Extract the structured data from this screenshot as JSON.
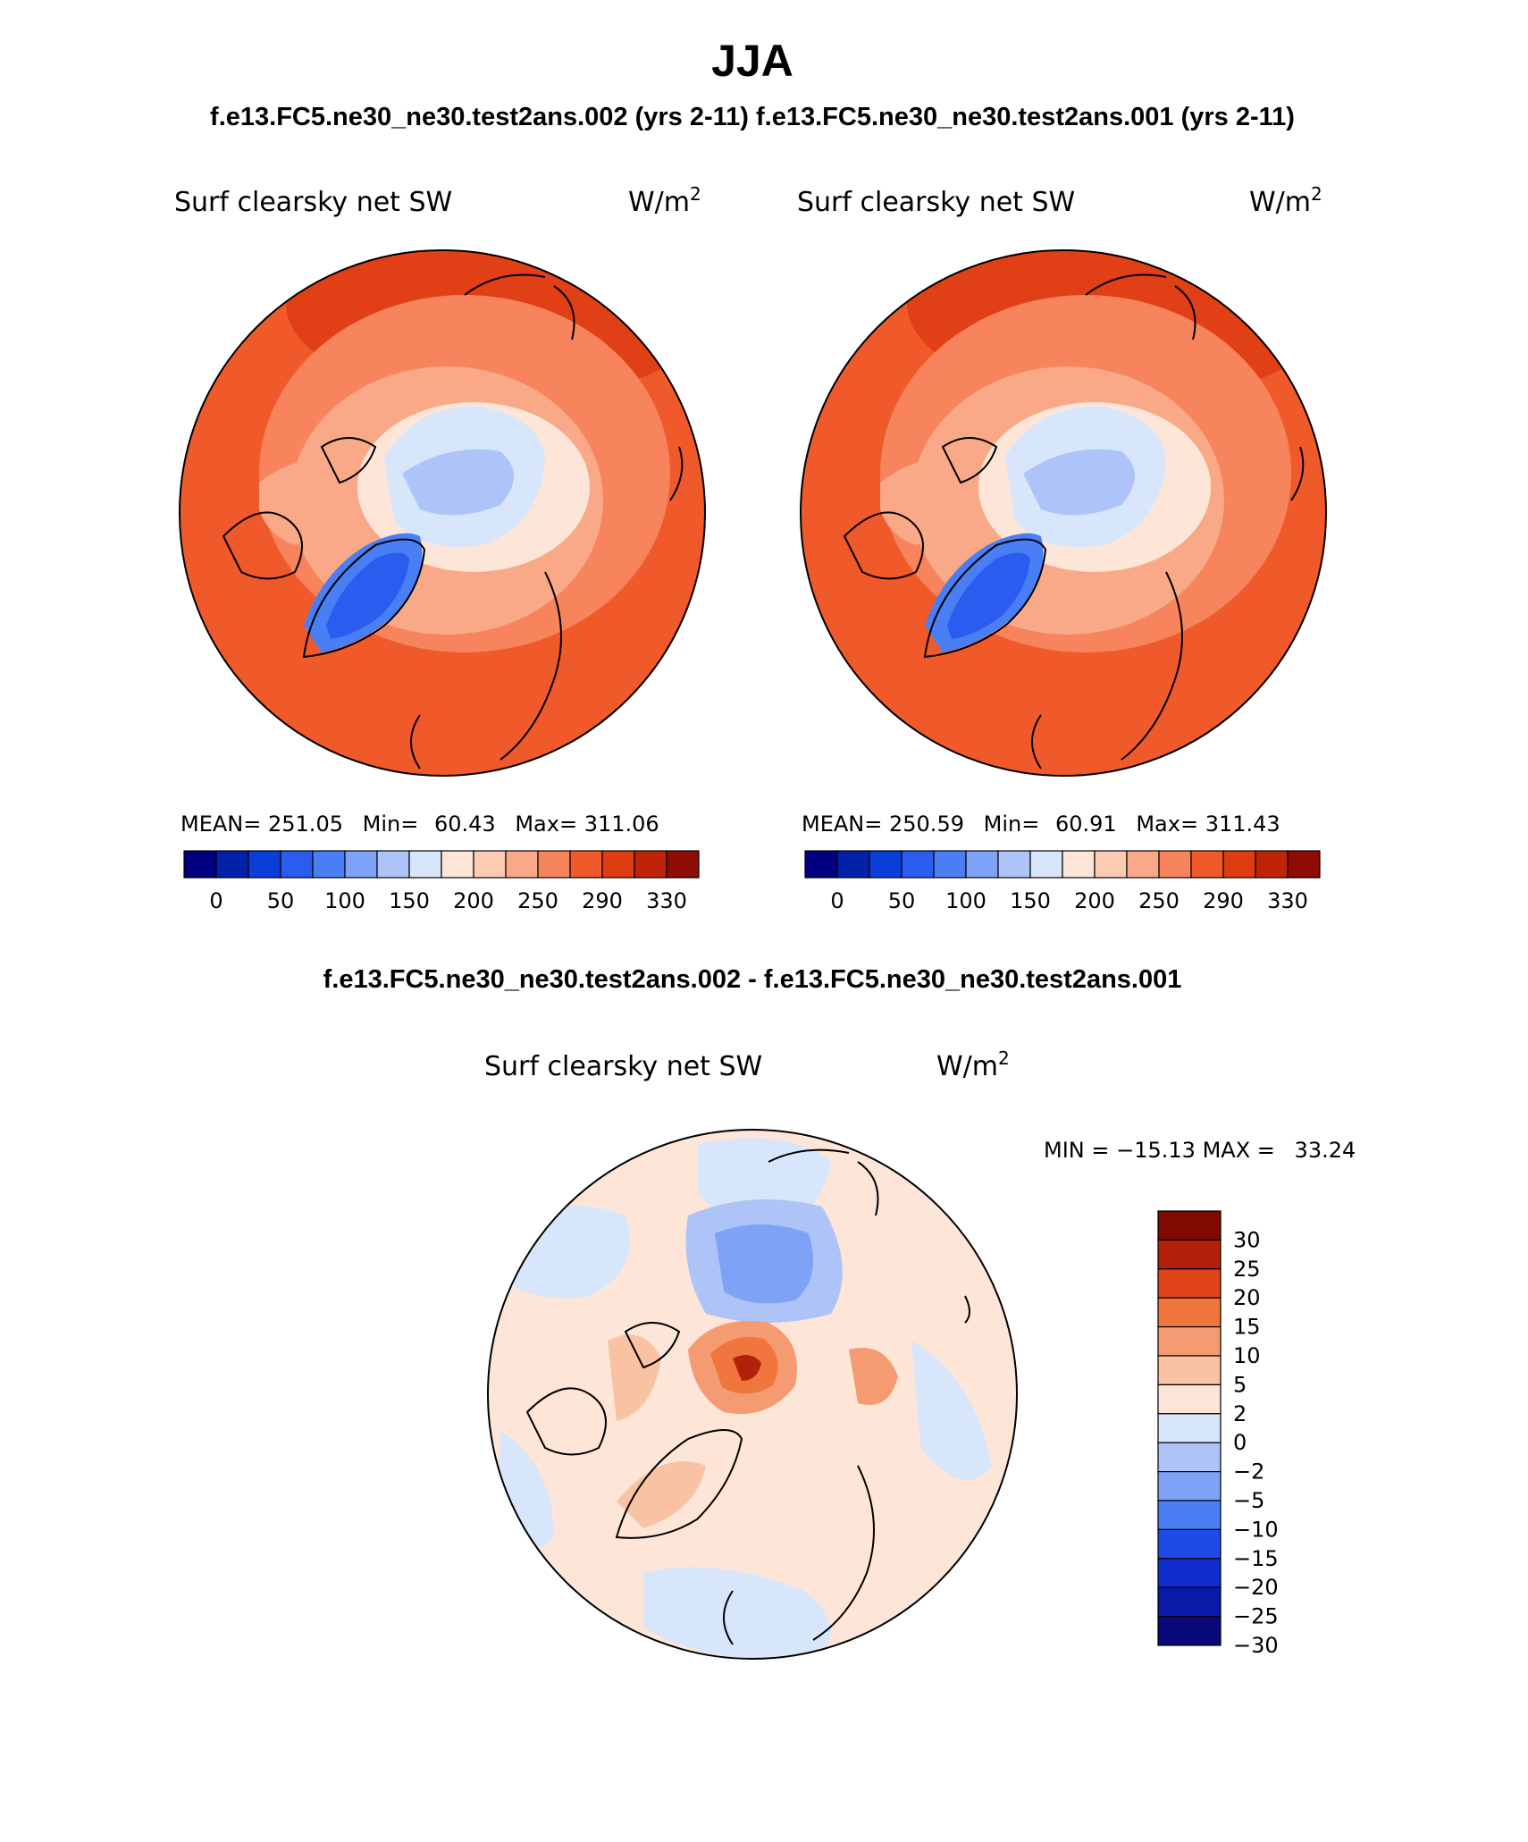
{
  "figure": {
    "season": "JJA",
    "runs_title": "f.e13.FC5.ne30_ne30.test2ans.002 (yrs 2-11) f.e13.FC5.ne30_ne30.test2ans.001 (yrs 2-11)",
    "diff_title": "f.e13.FC5.ne30_ne30.test2ans.002 - f.e13.FC5.ne30_ne30.test2ans.001"
  },
  "colors": {
    "abs_levels": [
      "#00007f",
      "#0022aa",
      "#0a3ed8",
      "#2a5cf0",
      "#4a7ef4",
      "#7ea2f6",
      "#aec4f8",
      "#d8e6fb",
      "#fde6d8",
      "#fccbb2",
      "#f9a988",
      "#f7845c",
      "#f05a2a",
      "#df3c14",
      "#bf2308",
      "#8e0c04"
    ],
    "diff_levels": [
      "#08087a",
      "#0a1aa8",
      "#0f2ccc",
      "#1f4ae8",
      "#4a7ef4",
      "#7ea2f6",
      "#aec4f8",
      "#d8e6fb",
      "#fde6d8",
      "#f9c2a2",
      "#f59b72",
      "#f0763e",
      "#e0421a",
      "#b4210a",
      "#7e0a02"
    ],
    "land_outline": "#000000"
  },
  "chart_data": [
    {
      "type": "heatmap",
      "projection": "north-polar-stereographic",
      "title": "Surf clearsky net SW",
      "units": "W/m",
      "units_exp": "2",
      "run": "f.e13.FC5.ne30_ne30.test2ans.002 (yrs 2-11)",
      "stats": {
        "mean_label": "MEAN=",
        "mean": "251.05",
        "min_label": "Min=",
        "min": "60.43",
        "max_label": "Max=",
        "max": "311.06"
      },
      "colorbar_ticks": [
        "0",
        "50",
        "100",
        "150",
        "200",
        "250",
        "290",
        "330"
      ],
      "colorbar_bins": 16,
      "legend": "bottom"
    },
    {
      "type": "heatmap",
      "projection": "north-polar-stereographic",
      "title": "Surf clearsky net SW",
      "units": "W/m",
      "units_exp": "2",
      "run": "f.e13.FC5.ne30_ne30.test2ans.001 (yrs 2-11)",
      "stats": {
        "mean_label": "MEAN=",
        "mean": "250.59",
        "min_label": "Min=",
        "min": "60.91",
        "max_label": "Max=",
        "max": "311.43"
      },
      "colorbar_ticks": [
        "0",
        "50",
        "100",
        "150",
        "200",
        "250",
        "290",
        "330"
      ],
      "colorbar_bins": 16,
      "legend": "bottom"
    },
    {
      "type": "heatmap",
      "projection": "north-polar-stereographic",
      "title": "Surf clearsky net SW",
      "units": "W/m",
      "units_exp": "2",
      "run": "difference",
      "stats": {
        "min_label": "MIN =",
        "min": "−15.13",
        "max_label": "MAX =",
        "max": "33.24"
      },
      "colorbar_ticks": [
        "30",
        "25",
        "20",
        "15",
        "10",
        "5",
        "2",
        "0",
        "−2",
        "−5",
        "−10",
        "−15",
        "−20",
        "−25",
        "−30"
      ],
      "colorbar_bins": 15,
      "legend": "right"
    }
  ]
}
